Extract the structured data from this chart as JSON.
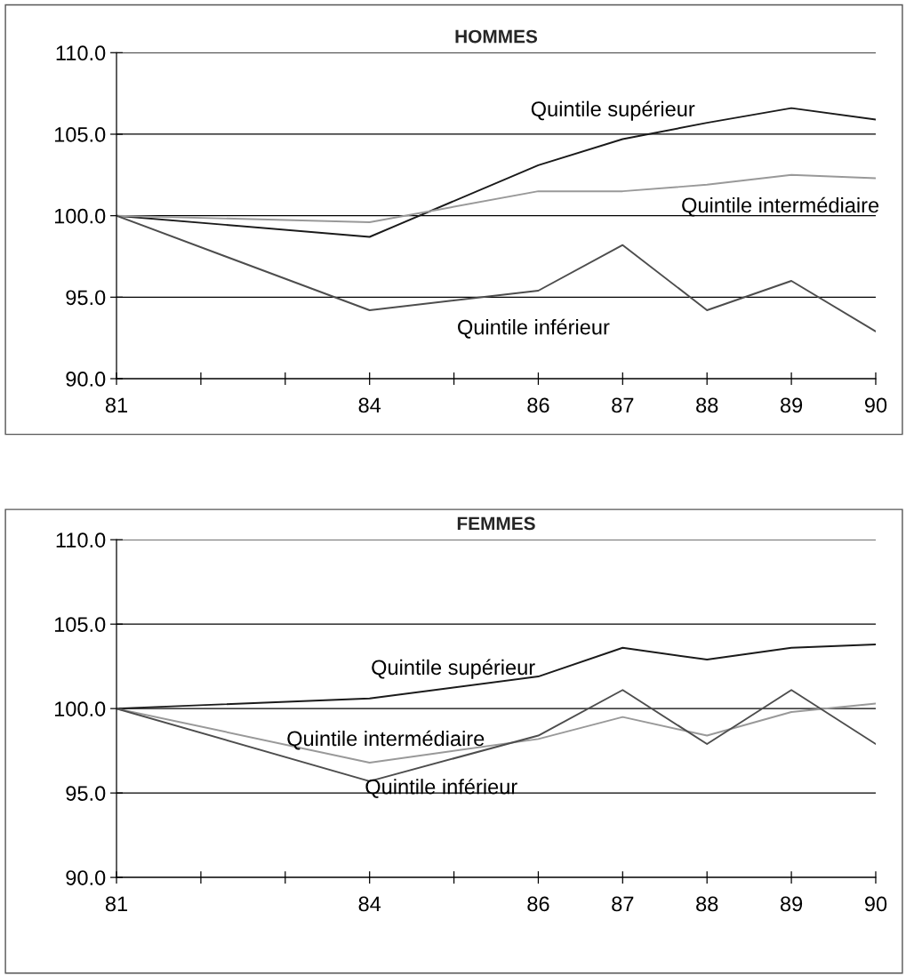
{
  "chart_data": [
    {
      "type": "line",
      "title": "HOMMES",
      "xlim": [
        81,
        90
      ],
      "ylim": [
        90,
        110
      ],
      "grid": "y",
      "xticks": [
        81,
        {
          "value": 82,
          "label": null
        },
        {
          "value": 83,
          "label": null
        },
        84,
        {
          "value": 85,
          "label": null
        },
        86,
        87,
        88,
        89,
        90
      ],
      "yticks": [
        {
          "value": 90,
          "label": "90.0"
        },
        {
          "value": 95,
          "label": "95.0"
        },
        {
          "value": 100,
          "label": "100.0"
        },
        {
          "value": 105,
          "label": "105.0"
        },
        {
          "value": 110,
          "label": "110.0"
        }
      ],
      "x": [
        81,
        84,
        86,
        87,
        88,
        89,
        90
      ],
      "series": [
        {
          "name": "Quintile supérieur",
          "color": "#1a1a1a",
          "values": [
            100.0,
            98.7,
            103.1,
            104.7,
            105.7,
            106.6,
            105.9
          ]
        },
        {
          "name": "Quintile intermédiaire",
          "color": "#999999",
          "values": [
            100.0,
            99.6,
            101.5,
            101.5,
            101.9,
            102.5,
            102.3
          ]
        },
        {
          "name": "Quintile inférieur",
          "color": "#4d4d4d",
          "values": [
            100.0,
            94.2,
            95.4,
            98.2,
            94.2,
            96.0,
            92.9
          ]
        }
      ]
    },
    {
      "type": "line",
      "title": "FEMMES",
      "xlim": [
        81,
        90
      ],
      "ylim": [
        90,
        110
      ],
      "grid": "y",
      "xticks": [
        81,
        {
          "value": 82,
          "label": null
        },
        {
          "value": 83,
          "label": null
        },
        84,
        {
          "value": 85,
          "label": null
        },
        86,
        87,
        88,
        89,
        90
      ],
      "yticks": [
        {
          "value": 90,
          "label": "90.0"
        },
        {
          "value": 95,
          "label": "95.0"
        },
        {
          "value": 100,
          "label": "100.0"
        },
        {
          "value": 105,
          "label": "105.0"
        },
        {
          "value": 110,
          "label": "110.0"
        }
      ],
      "x": [
        81,
        84,
        86,
        87,
        88,
        89,
        90
      ],
      "series": [
        {
          "name": "Quintile supérieur",
          "color": "#1a1a1a",
          "values": [
            100.0,
            100.6,
            101.9,
            103.6,
            102.9,
            103.6,
            103.8
          ]
        },
        {
          "name": "Quintile intermédiaire",
          "color": "#999999",
          "values": [
            100.0,
            96.8,
            98.2,
            99.5,
            98.4,
            99.8,
            100.3
          ]
        },
        {
          "name": "Quintile inférieur",
          "color": "#4d4d4d",
          "values": [
            100.0,
            95.7,
            98.4,
            101.1,
            97.9,
            101.1,
            97.9
          ]
        }
      ]
    }
  ]
}
